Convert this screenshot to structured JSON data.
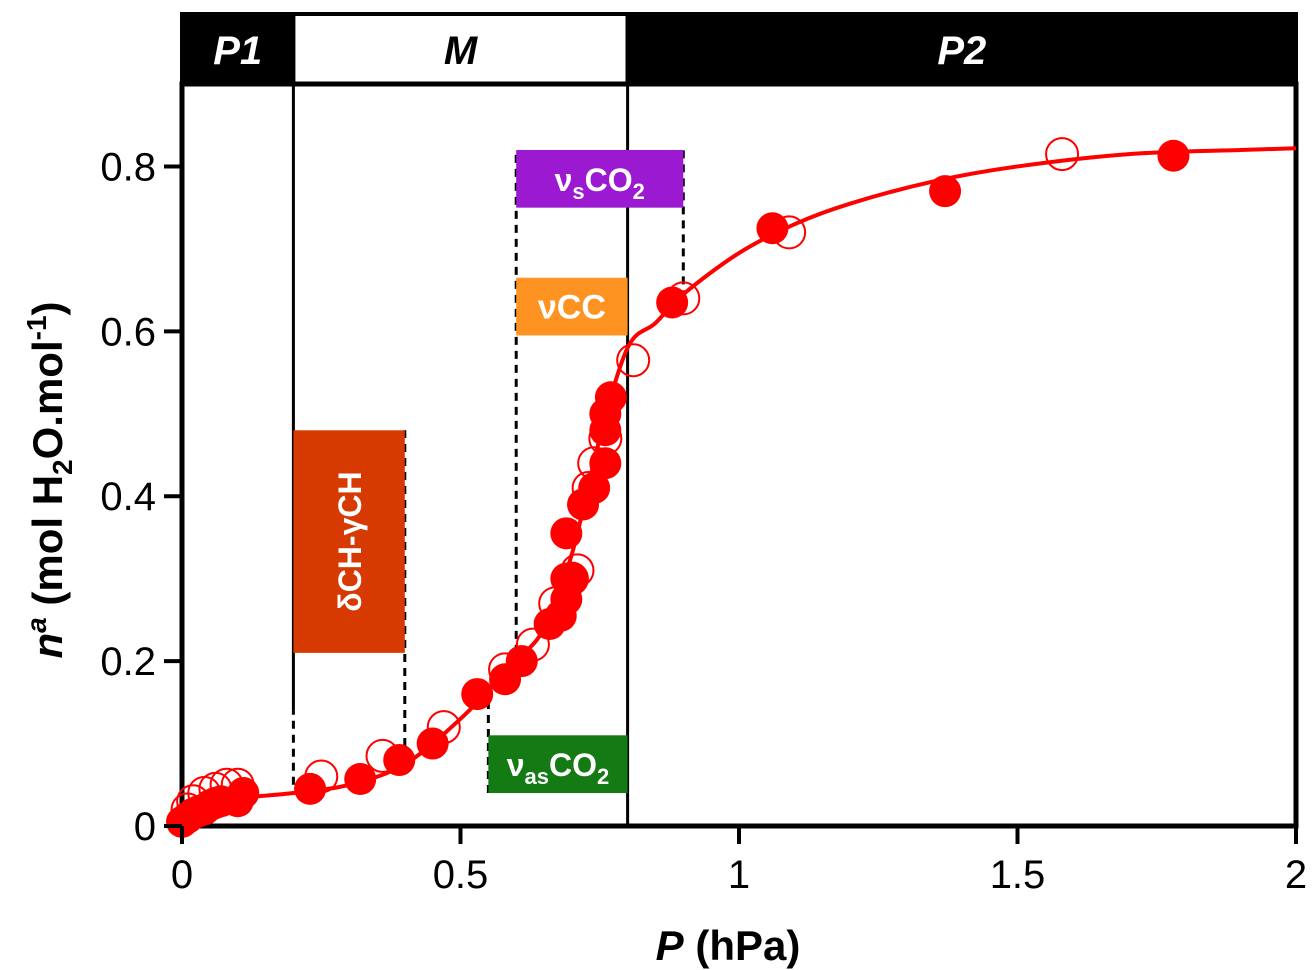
{
  "chart_data": {
    "type": "scatter",
    "title": "",
    "xlabel": {
      "main": "P",
      "rest": " (hPa)"
    },
    "ylabel": {
      "main": "n",
      "sup": "a",
      "rest1": " (mol H",
      "sub": "2",
      "rest2": "O.mol",
      "sup2": "-1",
      "rest3": ")"
    },
    "xlim": [
      0,
      2
    ],
    "ylim": [
      0,
      0.9
    ],
    "xticks": [
      0,
      0.5,
      1,
      1.5,
      2
    ],
    "xtick_labels": [
      "0",
      "0.5",
      "1",
      "1.5",
      "2"
    ],
    "yticks": [
      0,
      0.2,
      0.4,
      0.6,
      0.8
    ],
    "ytick_labels": [
      "0",
      "0.2",
      "0.4",
      "0.6",
      "0.8"
    ],
    "grid": false,
    "colors": {
      "series": "#ff0000",
      "axis": "#000000"
    },
    "regions": [
      {
        "label": "P1",
        "x0": 0,
        "x1": 0.2,
        "fill": "#000000",
        "text_color": "#ffffff"
      },
      {
        "label": "M",
        "x0": 0.2,
        "x1": 0.8,
        "fill": "#ffffff",
        "text_color": "#000000"
      },
      {
        "label": "P2",
        "x0": 0.8,
        "x1": 2,
        "fill": "#000000",
        "text_color": "#ffffff"
      }
    ],
    "region_lines_x": [
      0.2,
      0.8
    ],
    "series": [
      {
        "marker": "filled",
        "points": [
          [
            0.0,
            0.005
          ],
          [
            0.01,
            0.01
          ],
          [
            0.02,
            0.015
          ],
          [
            0.03,
            0.018
          ],
          [
            0.04,
            0.02
          ],
          [
            0.05,
            0.025
          ],
          [
            0.06,
            0.028
          ],
          [
            0.07,
            0.03
          ],
          [
            0.1,
            0.03
          ],
          [
            0.11,
            0.04
          ],
          [
            0.23,
            0.045
          ],
          [
            0.32,
            0.057
          ],
          [
            0.39,
            0.08
          ],
          [
            0.45,
            0.1
          ],
          [
            0.53,
            0.16
          ],
          [
            0.58,
            0.178
          ],
          [
            0.61,
            0.2
          ],
          [
            0.66,
            0.245
          ],
          [
            0.68,
            0.255
          ],
          [
            0.69,
            0.275
          ],
          [
            0.69,
            0.3
          ],
          [
            0.7,
            0.3
          ],
          [
            0.69,
            0.355
          ],
          [
            0.72,
            0.39
          ],
          [
            0.74,
            0.41
          ],
          [
            0.76,
            0.44
          ],
          [
            0.76,
            0.48
          ],
          [
            0.76,
            0.5
          ],
          [
            0.77,
            0.52
          ],
          [
            0.88,
            0.635
          ],
          [
            1.06,
            0.725
          ],
          [
            1.37,
            0.77
          ],
          [
            1.78,
            0.813
          ]
        ]
      },
      {
        "marker": "open",
        "points": [
          [
            0.01,
            0.02
          ],
          [
            0.02,
            0.03
          ],
          [
            0.04,
            0.04
          ],
          [
            0.06,
            0.045
          ],
          [
            0.08,
            0.05
          ],
          [
            0.1,
            0.05
          ],
          [
            0.25,
            0.06
          ],
          [
            0.36,
            0.085
          ],
          [
            0.47,
            0.12
          ],
          [
            0.58,
            0.19
          ],
          [
            0.63,
            0.22
          ],
          [
            0.67,
            0.27
          ],
          [
            0.7,
            0.3
          ],
          [
            0.71,
            0.31
          ],
          [
            0.73,
            0.41
          ],
          [
            0.74,
            0.44
          ],
          [
            0.76,
            0.47
          ],
          [
            0.81,
            0.565
          ],
          [
            0.9,
            0.64
          ],
          [
            1.09,
            0.72
          ],
          [
            1.58,
            0.815
          ]
        ]
      }
    ],
    "fit_curve": [
      [
        0,
        0.005
      ],
      [
        0.05,
        0.02
      ],
      [
        0.1,
        0.033
      ],
      [
        0.2,
        0.04
      ],
      [
        0.3,
        0.05
      ],
      [
        0.4,
        0.075
      ],
      [
        0.5,
        0.13
      ],
      [
        0.6,
        0.2
      ],
      [
        0.65,
        0.24
      ],
      [
        0.7,
        0.33
      ],
      [
        0.75,
        0.47
      ],
      [
        0.8,
        0.58
      ],
      [
        0.85,
        0.61
      ],
      [
        0.9,
        0.645
      ],
      [
        1.0,
        0.695
      ],
      [
        1.1,
        0.73
      ],
      [
        1.2,
        0.755
      ],
      [
        1.35,
        0.782
      ],
      [
        1.5,
        0.8
      ],
      [
        1.7,
        0.815
      ],
      [
        1.9,
        0.82
      ],
      [
        2.0,
        0.822
      ]
    ],
    "annotations": [
      {
        "id": "dch-gch",
        "label": "δCH-γCH",
        "vertical": true,
        "fill": "#d63a00",
        "x0": 0.2,
        "x1": 0.4,
        "y0": 0.21,
        "y1": 0.48,
        "dashed_x": [
          0.2,
          0.4
        ]
      },
      {
        "id": "nu-cc",
        "label": "νCC",
        "fill": "#ff9322",
        "x0": 0.6,
        "x1": 0.8,
        "y0": 0.595,
        "y1": 0.665,
        "dashed_x": []
      },
      {
        "id": "nu-s-co2",
        "label_main": "ν",
        "label_sub": "s",
        "label_rest": "CO",
        "label_sub2": "2",
        "fill": "#9b19d0",
        "x0": 0.6,
        "x1": 0.9,
        "y0": 0.75,
        "y1": 0.82,
        "dashed_x": [
          0.6,
          0.9
        ]
      },
      {
        "id": "nu-as-co2",
        "label_main": "ν",
        "label_sub": "as",
        "label_rest": "CO",
        "label_sub2": "2",
        "fill": "#137a14",
        "x0": 0.55,
        "x1": 0.8,
        "y0": 0.04,
        "y1": 0.11,
        "dashed_x": [
          0.55
        ]
      }
    ],
    "dashed_segments": [
      {
        "x": 0.2,
        "y0": 0.05,
        "y1": 0.14
      },
      {
        "x": 0.4,
        "y0": 0.08,
        "y1": 0.48
      },
      {
        "x": 0.55,
        "y0": 0.04,
        "y1": 0.16
      },
      {
        "x": 0.6,
        "y0": 0.21,
        "y1": 0.82
      },
      {
        "x": 0.9,
        "y0": 0.64,
        "y1": 0.82
      }
    ]
  }
}
